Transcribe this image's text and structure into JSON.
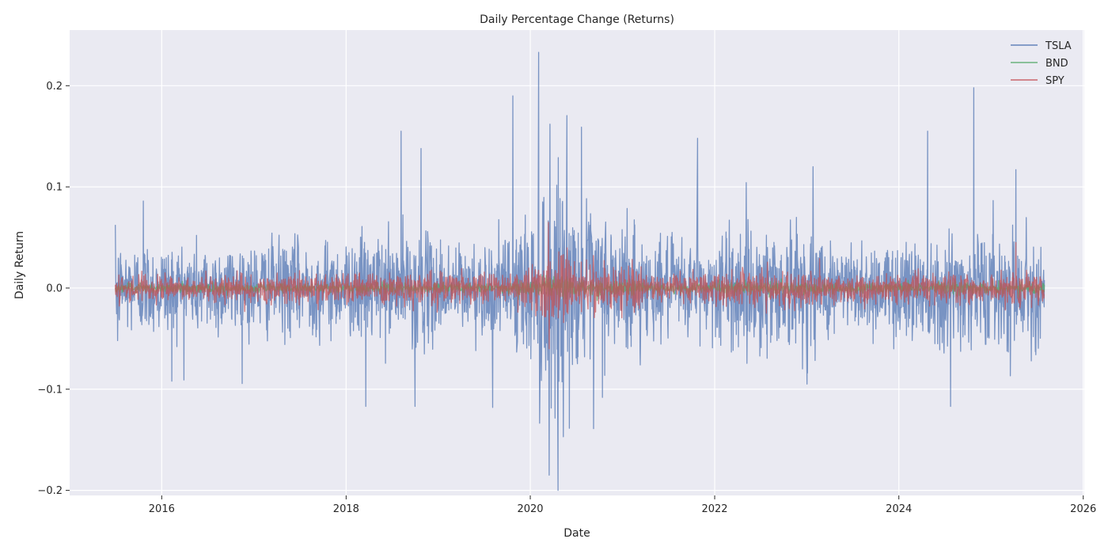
{
  "chart_data": {
    "type": "line",
    "title": "Daily Percentage Change (Returns)",
    "xlabel": "Date",
    "ylabel": "Daily Return",
    "x_range": [
      "2015-07-01",
      "2025-07-31"
    ],
    "xlim": [
      "2015-01-01",
      "2026-01-05"
    ],
    "ylim": [
      -0.205,
      0.255
    ],
    "x_ticks": [
      "2016",
      "2018",
      "2020",
      "2022",
      "2024",
      "2026"
    ],
    "y_ticks": [
      {
        "value": -0.2,
        "label": "−0.2"
      },
      {
        "value": -0.1,
        "label": "−0.1"
      },
      {
        "value": 0.0,
        "label": "0.0"
      },
      {
        "value": 0.1,
        "label": "0.1"
      },
      {
        "value": 0.2,
        "label": "0.2"
      }
    ],
    "grid": true,
    "legend_position": "top-right",
    "background": "#eaeaf2",
    "series": [
      {
        "name": "TSLA",
        "color": "#4c72b0",
        "peaks": [
          {
            "x": "2015-07-02",
            "y": 0.036
          },
          {
            "x": "2015-07-10",
            "y": -0.052
          },
          {
            "x": "2015-10-20",
            "y": 0.086
          },
          {
            "x": "2016-02-10",
            "y": -0.092
          },
          {
            "x": "2018-03-20",
            "y": -0.117
          },
          {
            "x": "2018-08-07",
            "y": 0.155
          },
          {
            "x": "2018-10-01",
            "y": -0.117
          },
          {
            "x": "2018-10-25",
            "y": 0.138
          },
          {
            "x": "2019-08-05",
            "y": -0.118
          },
          {
            "x": "2019-10-24",
            "y": 0.19
          },
          {
            "x": "2020-02-03",
            "y": 0.233
          },
          {
            "x": "2020-03-16",
            "y": -0.185
          },
          {
            "x": "2020-03-19",
            "y": 0.162
          },
          {
            "x": "2020-07-22",
            "y": 0.159
          },
          {
            "x": "2020-09-08",
            "y": -0.139
          },
          {
            "x": "2021-10-25",
            "y": 0.148
          },
          {
            "x": "2023-01-26",
            "y": 0.12
          },
          {
            "x": "2024-04-24",
            "y": 0.155
          },
          {
            "x": "2024-07-24",
            "y": -0.117
          },
          {
            "x": "2024-10-24",
            "y": 0.198
          },
          {
            "x": "2025-04-09",
            "y": 0.117
          }
        ]
      },
      {
        "name": "BND",
        "color": "#55a868",
        "peaks": []
      },
      {
        "name": "SPY",
        "color": "#c44e52",
        "peaks": [
          {
            "x": "2020-03-13",
            "y": 0.065
          },
          {
            "x": "2020-03-16",
            "y": -0.06
          },
          {
            "x": "2025-04-09",
            "y": 0.045
          }
        ]
      }
    ]
  }
}
